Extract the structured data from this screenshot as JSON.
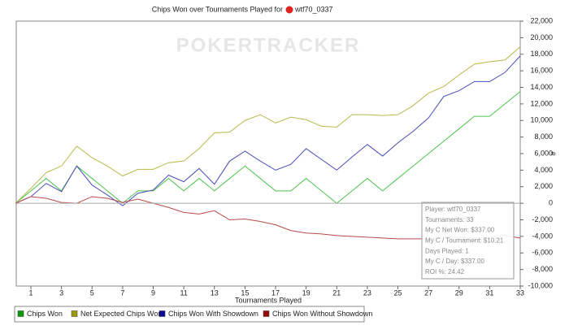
{
  "chart_data": {
    "type": "line",
    "title": "Chips Won over Tournaments Played for",
    "player": "wtf70_0337",
    "watermark": "POKERTRACKER",
    "x_label": "Tournaments Played",
    "y_label": "#",
    "x": [
      0,
      1,
      2,
      3,
      4,
      5,
      6,
      7,
      8,
      9,
      10,
      11,
      12,
      13,
      14,
      15,
      16,
      17,
      18,
      19,
      20,
      21,
      22,
      23,
      24,
      25,
      26,
      27,
      28,
      29,
      30,
      31,
      32,
      33
    ],
    "xlim": [
      0,
      33
    ],
    "xticks": [
      1,
      3,
      5,
      7,
      9,
      11,
      13,
      15,
      17,
      19,
      21,
      23,
      25,
      27,
      29,
      31,
      33
    ],
    "ylim": [
      -10000,
      22000
    ],
    "yticks": [
      {
        "value": -10000,
        "label": "-10,000"
      },
      {
        "value": -8000,
        "label": "-8,000"
      },
      {
        "value": -6000,
        "label": "-6,000"
      },
      {
        "value": -4000,
        "label": "-4,000"
      },
      {
        "value": -2000,
        "label": "-2,000"
      },
      0,
      {
        "value": 2000,
        "label": "2,000"
      },
      {
        "value": 4000,
        "label": "4,000"
      },
      {
        "value": 6000,
        "label": "6,000"
      },
      {
        "value": 8000,
        "label": "8,000"
      },
      {
        "value": 10000,
        "label": "10,000"
      },
      {
        "value": 12000,
        "label": "12,000"
      },
      {
        "value": 14000,
        "label": "14,000"
      },
      {
        "value": 16000,
        "label": "16,000"
      },
      {
        "value": 18000,
        "label": "18,000"
      },
      {
        "value": 20000,
        "label": "20,000"
      },
      {
        "value": 22000,
        "label": "22,000"
      }
    ],
    "y_axis_side": "right",
    "grid": false,
    "legend": "bottom",
    "series": [
      {
        "name": "Chips Won",
        "color": "#4cc44c",
        "legend_color": "#0a9a0a",
        "values": [
          0,
          1500,
          3000,
          1500,
          4500,
          3000,
          1500,
          0,
          1500,
          1500,
          3000,
          1500,
          3000,
          1500,
          3000,
          4500,
          3000,
          1500,
          1500,
          3000,
          1500,
          0,
          1500,
          3000,
          1500,
          3000,
          4500,
          6000,
          7500,
          9000,
          10500,
          10500,
          12000,
          13500
        ]
      },
      {
        "name": "Net Expected Chips Won",
        "color": "#b8b84a",
        "legend_color": "#9a9a0a",
        "values": [
          0,
          1800,
          3700,
          4500,
          6900,
          5500,
          4500,
          3300,
          4100,
          4100,
          4900,
          5100,
          6600,
          8500,
          8600,
          10000,
          10700,
          9700,
          10400,
          10100,
          9300,
          9200,
          10700,
          10700,
          10600,
          10700,
          11800,
          13300,
          14100,
          15500,
          16800,
          17100,
          17300,
          18900
        ]
      },
      {
        "name": "Chips Won With Showdown",
        "color": "#4a4ab8",
        "legend_color": "#0a0a9a",
        "values": [
          0,
          800,
          2400,
          1400,
          4500,
          2200,
          1000,
          -300,
          1200,
          1600,
          3400,
          2600,
          4200,
          2300,
          5100,
          6300,
          5100,
          4000,
          4700,
          6600,
          5300,
          4000,
          5600,
          7100,
          5700,
          7300,
          8700,
          10300,
          12900,
          13600,
          14700,
          14700,
          15800,
          17800
        ]
      },
      {
        "name": "Chips Won Without Showdown",
        "color": "#b84a4a",
        "legend_color": "#9a0a0a",
        "values": [
          0,
          800,
          600,
          100,
          0,
          800,
          600,
          100,
          500,
          0,
          -500,
          -1100,
          -1300,
          -900,
          -2000,
          -1900,
          -2200,
          -2600,
          -3300,
          -3600,
          -3700,
          -3900,
          -4000,
          -4100,
          -4200,
          -4300,
          -4300,
          -4300,
          -4100,
          -4100,
          -4200,
          -4100,
          -3900,
          -4200
        ]
      }
    ],
    "tooltip": {
      "lines": [
        "Player: wtf70_0337",
        "Tournaments: 33",
        "My C Net Won: $337.00",
        "My C / Tournament: $10.21",
        "Days Played: 1",
        "My C / Day: $337.00",
        "ROI %: 24.42"
      ]
    }
  }
}
